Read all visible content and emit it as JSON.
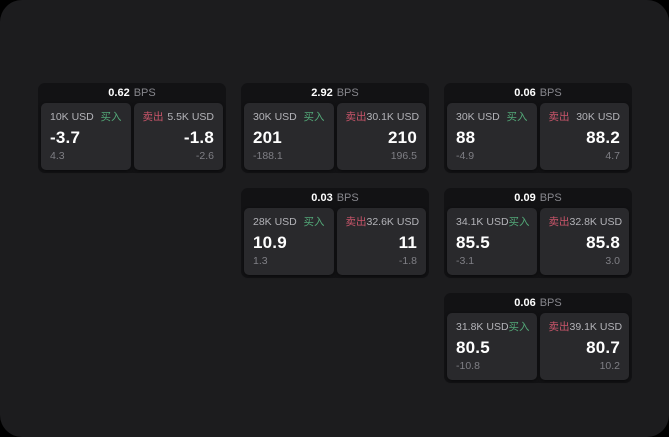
{
  "labels": {
    "bps_suffix": "BPS",
    "buy": "买入",
    "sell": "卖出"
  },
  "colors": {
    "outer_bg": "#000000",
    "panel_bg": "#1c1c1e",
    "card_bg": "#121214",
    "tile_bg": "#29292c",
    "buy_accent": "#53a878",
    "sell_accent": "#c9556a",
    "value_text": "#ffffff",
    "muted_text": "#7f7f85"
  },
  "cards": [
    {
      "col": 1,
      "row": 1,
      "bps": "0.62",
      "buy": {
        "notional": "10K USD",
        "price": "-3.7",
        "delta": "4.3"
      },
      "sell": {
        "notional": "5.5K USD",
        "price": "-1.8",
        "delta": "-2.6"
      }
    },
    {
      "col": 2,
      "row": 1,
      "bps": "2.92",
      "buy": {
        "notional": "30K USD",
        "price": "201",
        "delta": "-188.1"
      },
      "sell": {
        "notional": "30.1K USD",
        "price": "210",
        "delta": "196.5"
      }
    },
    {
      "col": 3,
      "row": 1,
      "bps": "0.06",
      "buy": {
        "notional": "30K USD",
        "price": "88",
        "delta": "-4.9"
      },
      "sell": {
        "notional": "30K USD",
        "price": "88.2",
        "delta": "4.7"
      }
    },
    {
      "col": 2,
      "row": 2,
      "bps": "0.03",
      "buy": {
        "notional": "28K USD",
        "price": "10.9",
        "delta": "1.3"
      },
      "sell": {
        "notional": "32.6K USD",
        "price": "11",
        "delta": "-1.8"
      }
    },
    {
      "col": 3,
      "row": 2,
      "bps": "0.09",
      "buy": {
        "notional": "34.1K USD",
        "price": "85.5",
        "delta": "-3.1"
      },
      "sell": {
        "notional": "32.8K USD",
        "price": "85.8",
        "delta": "3.0"
      }
    },
    {
      "col": 3,
      "row": 3,
      "bps": "0.06",
      "buy": {
        "notional": "31.8K USD",
        "price": "80.5",
        "delta": "-10.8"
      },
      "sell": {
        "notional": "39.1K USD",
        "price": "80.7",
        "delta": "10.2"
      }
    }
  ]
}
